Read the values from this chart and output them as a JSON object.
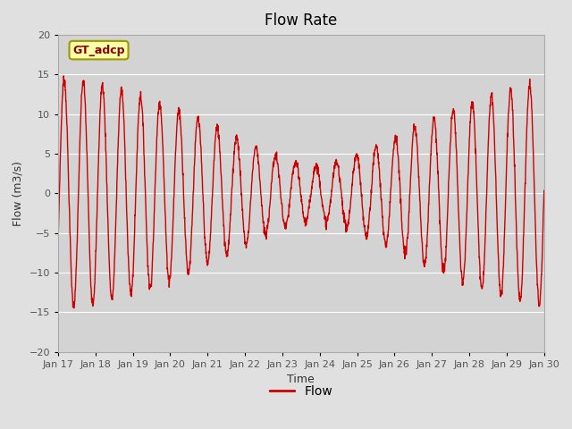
{
  "title": "Flow Rate",
  "xlabel": "Time",
  "ylabel": "Flow (m3/s)",
  "ylim": [
    -20,
    20
  ],
  "annotation_text": "GT_adcp",
  "legend_label": "Flow",
  "line_color": "#cc0000",
  "fig_bg_color": "#e0e0e0",
  "plot_bg_color": "#d3d3d3",
  "x_tick_labels": [
    "Jan 17",
    "Jan 18",
    "Jan 19",
    "Jan 20",
    "Jan 21",
    "Jan 22",
    "Jan 23",
    "Jan 24",
    "Jan 25",
    "Jan 26",
    "Jan 27",
    "Jan 28",
    "Jan 29",
    "Jan 30"
  ],
  "x_tick_positions": [
    0,
    1,
    2,
    3,
    4,
    5,
    6,
    7,
    8,
    9,
    10,
    11,
    12,
    13
  ],
  "xlim": [
    0,
    13
  ]
}
